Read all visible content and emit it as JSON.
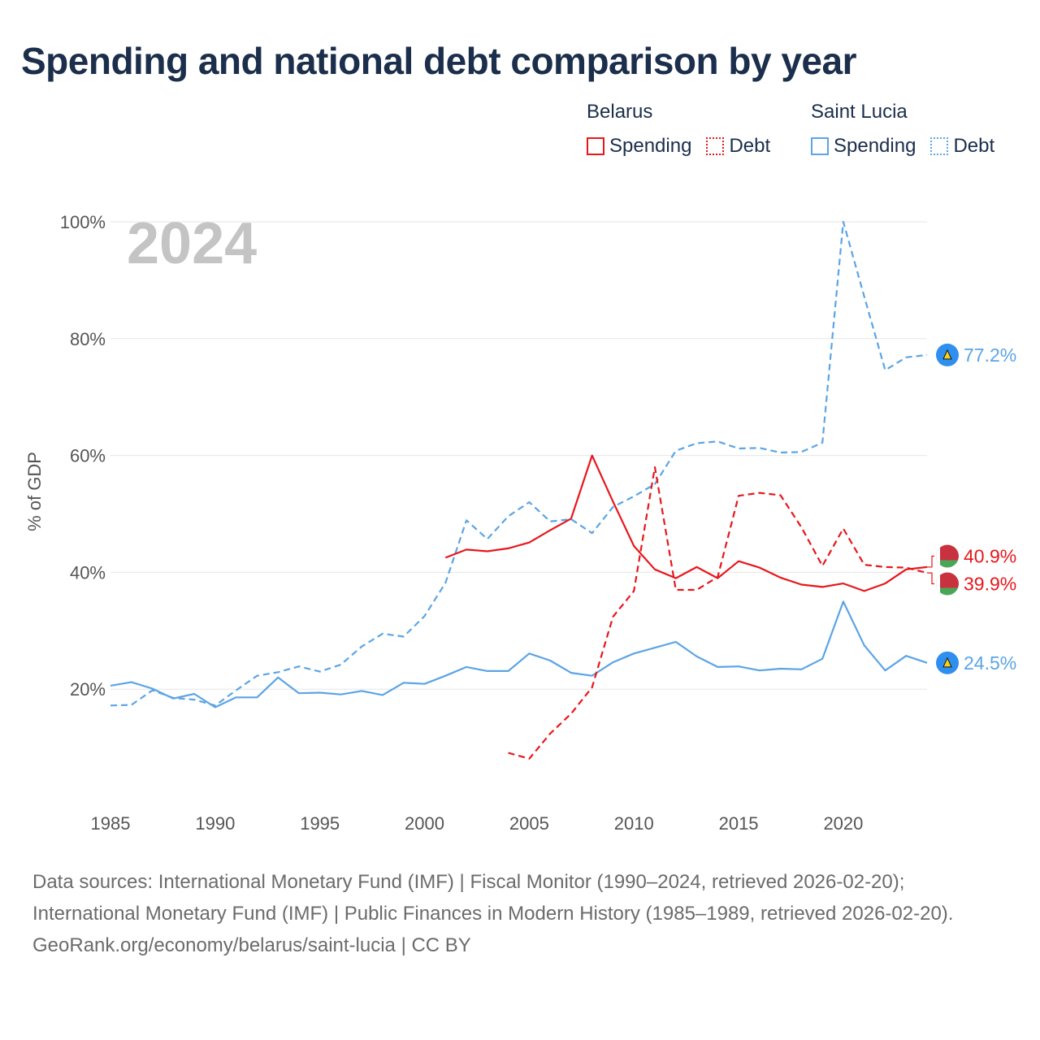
{
  "title": "Spending and national debt comparison by year",
  "legend": {
    "groups": [
      {
        "country": "Belarus",
        "color": "#e8161b",
        "items": [
          {
            "label": "Spending",
            "style": "solid"
          },
          {
            "label": "Debt",
            "style": "dotted"
          }
        ]
      },
      {
        "country": "Saint Lucia",
        "color": "#5ba4e5",
        "items": [
          {
            "label": "Spending",
            "style": "solid"
          },
          {
            "label": "Debt",
            "style": "dotted"
          }
        ]
      }
    ]
  },
  "chart_data": {
    "type": "line",
    "title": "Spending and national debt comparison by year",
    "year_label": "2024",
    "ylabel": "% of GDP",
    "xlabel": "",
    "xlim": [
      1985,
      2024
    ],
    "ylim": [
      0,
      100
    ],
    "x_ticks": [
      1985,
      1990,
      1995,
      2000,
      2005,
      2010,
      2015,
      2020
    ],
    "y_ticks": [
      20,
      40,
      60,
      80,
      100
    ],
    "y_tick_labels": [
      "20%",
      "40%",
      "60%",
      "80%",
      "100%"
    ],
    "grid": true,
    "series": [
      {
        "name": "Saint Lucia Debt",
        "country": "Saint Lucia",
        "metric": "Debt",
        "color": "#5ba4e5",
        "dash": "dashed",
        "x": [
          1985,
          1986,
          1987,
          1988,
          1989,
          1990,
          1991,
          1992,
          1993,
          1994,
          1995,
          1996,
          1997,
          1998,
          1999,
          2000,
          2001,
          2002,
          2003,
          2004,
          2005,
          2006,
          2007,
          2008,
          2009,
          2010,
          2011,
          2012,
          2013,
          2014,
          2015,
          2016,
          2017,
          2018,
          2019,
          2020,
          2021,
          2022,
          2023,
          2024
        ],
        "values": [
          17.2,
          17.3,
          19.8,
          18.5,
          18.2,
          17.2,
          19.8,
          22.3,
          22.9,
          23.9,
          23.0,
          24.2,
          27.3,
          29.5,
          29.0,
          32.5,
          38.2,
          48.9,
          45.7,
          49.6,
          52.0,
          48.7,
          49.1,
          46.7,
          51.2,
          53.0,
          55.1,
          60.8,
          62.1,
          62.4,
          61.2,
          61.3,
          60.5,
          60.6,
          62.2,
          100.0,
          87.2,
          74.6,
          76.8,
          77.2
        ],
        "end_label": "77.2%"
      },
      {
        "name": "Saint Lucia Spending",
        "country": "Saint Lucia",
        "metric": "Spending",
        "color": "#5ba4e5",
        "dash": "solid",
        "x": [
          1985,
          1986,
          1987,
          1988,
          1989,
          1990,
          1991,
          1992,
          1993,
          1994,
          1995,
          1996,
          1997,
          1998,
          1999,
          2000,
          2001,
          2002,
          2003,
          2004,
          2005,
          2006,
          2007,
          2008,
          2009,
          2010,
          2011,
          2012,
          2013,
          2014,
          2015,
          2016,
          2017,
          2018,
          2019,
          2020,
          2021,
          2022,
          2023,
          2024
        ],
        "values": [
          20.6,
          21.2,
          20.1,
          18.4,
          19.2,
          16.9,
          18.6,
          18.6,
          22.0,
          19.3,
          19.4,
          19.1,
          19.7,
          19.0,
          21.1,
          20.9,
          22.3,
          23.8,
          23.1,
          23.1,
          26.1,
          24.9,
          22.8,
          22.3,
          24.6,
          26.1,
          27.1,
          28.1,
          25.6,
          23.8,
          23.9,
          23.2,
          23.5,
          23.4,
          25.2,
          35.0,
          27.5,
          23.2,
          25.7,
          24.5
        ],
        "end_label": "24.5%"
      },
      {
        "name": "Belarus Debt",
        "country": "Belarus",
        "metric": "Debt",
        "color": "#e8161b",
        "dash": "dashed",
        "x": [
          2004,
          2005,
          2006,
          2007,
          2008,
          2009,
          2010,
          2011,
          2012,
          2013,
          2014,
          2015,
          2016,
          2017,
          2018,
          2019,
          2020,
          2021,
          2022,
          2023,
          2024
        ],
        "values": [
          9.1,
          8.1,
          12.4,
          15.8,
          20.3,
          32.4,
          36.8,
          58.0,
          37.0,
          37.0,
          39.2,
          53.1,
          53.6,
          53.2,
          47.7,
          41.1,
          47.5,
          41.3,
          40.9,
          40.8,
          39.9
        ],
        "end_label": "39.9%"
      },
      {
        "name": "Belarus Spending",
        "country": "Belarus",
        "metric": "Spending",
        "color": "#e8161b",
        "dash": "solid",
        "x": [
          2001,
          2002,
          2003,
          2004,
          2005,
          2006,
          2007,
          2008,
          2009,
          2010,
          2011,
          2012,
          2013,
          2014,
          2015,
          2016,
          2017,
          2018,
          2019,
          2020,
          2021,
          2022,
          2023,
          2024
        ],
        "values": [
          42.5,
          43.9,
          43.6,
          44.1,
          45.1,
          47.2,
          49.2,
          60.0,
          52.1,
          44.5,
          40.5,
          39.0,
          40.9,
          39.0,
          41.9,
          40.8,
          39.1,
          37.9,
          37.5,
          38.1,
          36.8,
          38.1,
          40.5,
          40.9
        ],
        "end_label": "40.9%"
      }
    ]
  },
  "sources": {
    "line1": "Data sources: International Monetary Fund (IMF) | Fiscal Monitor (1990–2024, retrieved 2026-02-20); International Monetary Fund (IMF) | Public Finances in Modern History (1985–1989, retrieved 2026-02-20).",
    "credit": "GeoRank.org/economy/belarus/saint-lucia | CC BY"
  }
}
